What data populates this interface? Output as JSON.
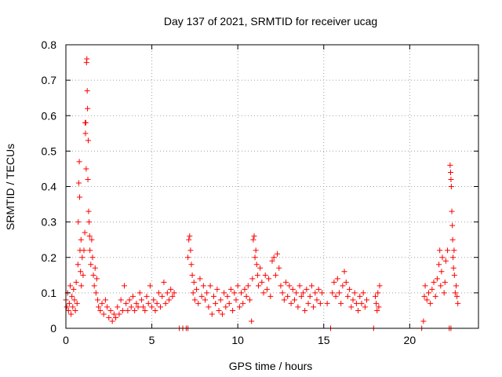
{
  "chart_data": {
    "type": "scatter",
    "title": "Day 137 of 2021, SRMTID for receiver ucag",
    "xlabel": "GPS time / hours",
    "ylabel": "SRMTID / TECUs",
    "xlim": [
      0,
      24
    ],
    "ylim": [
      0,
      0.8
    ],
    "xticks": [
      0,
      5,
      10,
      15,
      20
    ],
    "xtick_labels": [
      "0",
      "5",
      "10",
      "15",
      "20"
    ],
    "yticks": [
      0,
      0.1,
      0.2,
      0.3,
      0.4,
      0.5,
      0.6,
      0.7,
      0.8
    ],
    "ytick_labels": [
      "0",
      "0.1",
      "0.2",
      "0.3",
      "0.4",
      "0.5",
      "0.6",
      "0.7",
      "0.8"
    ],
    "grid": true,
    "marker": "+",
    "color": "#ff0000",
    "series": [
      {
        "name": "SRMTID",
        "points": [
          [
            0.0,
            0.08
          ],
          [
            0.05,
            0.06
          ],
          [
            0.1,
            0.1
          ],
          [
            0.15,
            0.05
          ],
          [
            0.2,
            0.07
          ],
          [
            0.25,
            0.12
          ],
          [
            0.3,
            0.04
          ],
          [
            0.35,
            0.09
          ],
          [
            0.4,
            0.06
          ],
          [
            0.45,
            0.11
          ],
          [
            0.5,
            0.08
          ],
          [
            0.55,
            0.05
          ],
          [
            0.6,
            0.13
          ],
          [
            0.65,
            0.07
          ],
          [
            0.7,
            0.18
          ],
          [
            0.72,
            0.3
          ],
          [
            0.75,
            0.41
          ],
          [
            0.78,
            0.47
          ],
          [
            0.8,
            0.37
          ],
          [
            0.82,
            0.22
          ],
          [
            0.85,
            0.16
          ],
          [
            0.88,
            0.25
          ],
          [
            0.9,
            0.12
          ],
          [
            0.95,
            0.2
          ],
          [
            1.0,
            0.15
          ],
          [
            1.05,
            0.22
          ],
          [
            1.1,
            0.27
          ],
          [
            1.12,
            0.58
          ],
          [
            1.14,
            0.55
          ],
          [
            1.16,
            0.58
          ],
          [
            1.18,
            0.45
          ],
          [
            1.2,
            0.75
          ],
          [
            1.22,
            0.76
          ],
          [
            1.24,
            0.67
          ],
          [
            1.26,
            0.62
          ],
          [
            1.28,
            0.42
          ],
          [
            1.3,
            0.53
          ],
          [
            1.32,
            0.33
          ],
          [
            1.35,
            0.3
          ],
          [
            1.38,
            0.26
          ],
          [
            1.4,
            0.22
          ],
          [
            1.45,
            0.18
          ],
          [
            1.5,
            0.25
          ],
          [
            1.55,
            0.2
          ],
          [
            1.6,
            0.15
          ],
          [
            1.65,
            0.12
          ],
          [
            1.7,
            0.17
          ],
          [
            1.75,
            0.1
          ],
          [
            1.8,
            0.14
          ],
          [
            1.85,
            0.08
          ],
          [
            1.9,
            0.06
          ],
          [
            2.0,
            0.05
          ],
          [
            2.1,
            0.07
          ],
          [
            2.2,
            0.04
          ],
          [
            2.3,
            0.08
          ],
          [
            2.4,
            0.06
          ],
          [
            2.5,
            0.03
          ],
          [
            2.6,
            0.05
          ],
          [
            2.7,
            0.02
          ],
          [
            2.8,
            0.04
          ],
          [
            2.9,
            0.03
          ],
          [
            3.0,
            0.06
          ],
          [
            3.1,
            0.04
          ],
          [
            3.2,
            0.08
          ],
          [
            3.3,
            0.05
          ],
          [
            3.4,
            0.12
          ],
          [
            3.5,
            0.07
          ],
          [
            3.6,
            0.05
          ],
          [
            3.7,
            0.08
          ],
          [
            3.8,
            0.06
          ],
          [
            3.9,
            0.09
          ],
          [
            4.0,
            0.05
          ],
          [
            4.1,
            0.07
          ],
          [
            4.2,
            0.06
          ],
          [
            4.3,
            0.1
          ],
          [
            4.4,
            0.08
          ],
          [
            4.5,
            0.06
          ],
          [
            4.6,
            0.05
          ],
          [
            4.7,
            0.09
          ],
          [
            4.8,
            0.07
          ],
          [
            4.9,
            0.12
          ],
          [
            5.0,
            0.06
          ],
          [
            5.1,
            0.08
          ],
          [
            5.2,
            0.05
          ],
          [
            5.3,
            0.07
          ],
          [
            5.4,
            0.1
          ],
          [
            5.5,
            0.06
          ],
          [
            5.6,
            0.09
          ],
          [
            5.7,
            0.13
          ],
          [
            5.8,
            0.07
          ],
          [
            5.9,
            0.1
          ],
          [
            6.0,
            0.08
          ],
          [
            6.1,
            0.11
          ],
          [
            6.2,
            0.09
          ],
          [
            6.3,
            0.1
          ],
          [
            6.6,
            0.0
          ],
          [
            6.8,
            0.0
          ],
          [
            7.0,
            0.0
          ],
          [
            7.1,
            0.0
          ],
          [
            7.1,
            0.2
          ],
          [
            7.15,
            0.25
          ],
          [
            7.2,
            0.26
          ],
          [
            7.25,
            0.22
          ],
          [
            7.3,
            0.18
          ],
          [
            7.35,
            0.15
          ],
          [
            7.4,
            0.1
          ],
          [
            7.45,
            0.13
          ],
          [
            7.5,
            0.08
          ],
          [
            7.6,
            0.11
          ],
          [
            7.7,
            0.07
          ],
          [
            7.8,
            0.14
          ],
          [
            7.9,
            0.09
          ],
          [
            8.0,
            0.12
          ],
          [
            8.1,
            0.08
          ],
          [
            8.2,
            0.1
          ],
          [
            8.3,
            0.06
          ],
          [
            8.4,
            0.12
          ],
          [
            8.5,
            0.04
          ],
          [
            8.6,
            0.09
          ],
          [
            8.7,
            0.07
          ],
          [
            8.8,
            0.11
          ],
          [
            8.9,
            0.05
          ],
          [
            9.0,
            0.08
          ],
          [
            9.1,
            0.04
          ],
          [
            9.2,
            0.1
          ],
          [
            9.3,
            0.06
          ],
          [
            9.4,
            0.09
          ],
          [
            9.5,
            0.07
          ],
          [
            9.6,
            0.11
          ],
          [
            9.7,
            0.05
          ],
          [
            9.8,
            0.1
          ],
          [
            9.9,
            0.08
          ],
          [
            10.0,
            0.12
          ],
          [
            10.1,
            0.06
          ],
          [
            10.2,
            0.1
          ],
          [
            10.3,
            0.07
          ],
          [
            10.4,
            0.11
          ],
          [
            10.5,
            0.09
          ],
          [
            10.6,
            0.12
          ],
          [
            10.7,
            0.08
          ],
          [
            10.8,
            0.02
          ],
          [
            10.85,
            0.14
          ],
          [
            10.9,
            0.25
          ],
          [
            10.95,
            0.26
          ],
          [
            11.0,
            0.2
          ],
          [
            11.05,
            0.22
          ],
          [
            11.1,
            0.18
          ],
          [
            11.15,
            0.15
          ],
          [
            11.2,
            0.12
          ],
          [
            11.3,
            0.17
          ],
          [
            11.4,
            0.13
          ],
          [
            11.5,
            0.1
          ],
          [
            11.6,
            0.15
          ],
          [
            11.7,
            0.11
          ],
          [
            11.8,
            0.14
          ],
          [
            11.9,
            0.09
          ],
          [
            12.0,
            0.19
          ],
          [
            12.1,
            0.2
          ],
          [
            12.2,
            0.15
          ],
          [
            12.3,
            0.21
          ],
          [
            12.4,
            0.17
          ],
          [
            12.5,
            0.12
          ],
          [
            12.6,
            0.1
          ],
          [
            12.7,
            0.08
          ],
          [
            12.8,
            0.13
          ],
          [
            12.9,
            0.09
          ],
          [
            13.0,
            0.12
          ],
          [
            13.1,
            0.07
          ],
          [
            13.2,
            0.11
          ],
          [
            13.3,
            0.08
          ],
          [
            13.4,
            0.1
          ],
          [
            13.5,
            0.06
          ],
          [
            13.6,
            0.12
          ],
          [
            13.7,
            0.09
          ],
          [
            13.8,
            0.1
          ],
          [
            13.9,
            0.05
          ],
          [
            14.0,
            0.11
          ],
          [
            14.1,
            0.07
          ],
          [
            14.2,
            0.09
          ],
          [
            14.3,
            0.12
          ],
          [
            14.4,
            0.06
          ],
          [
            14.5,
            0.1
          ],
          [
            14.6,
            0.08
          ],
          [
            14.7,
            0.11
          ],
          [
            14.8,
            0.07
          ],
          [
            14.9,
            0.1
          ],
          [
            15.2,
            0.07
          ],
          [
            15.4,
            0.0
          ],
          [
            15.5,
            0.1
          ],
          [
            15.6,
            0.13
          ],
          [
            15.7,
            0.09
          ],
          [
            15.8,
            0.14
          ],
          [
            15.9,
            0.1
          ],
          [
            16.0,
            0.07
          ],
          [
            16.1,
            0.12
          ],
          [
            16.2,
            0.16
          ],
          [
            16.3,
            0.13
          ],
          [
            16.4,
            0.09
          ],
          [
            16.5,
            0.11
          ],
          [
            16.6,
            0.06
          ],
          [
            16.7,
            0.08
          ],
          [
            16.8,
            0.1
          ],
          [
            16.9,
            0.07
          ],
          [
            17.0,
            0.05
          ],
          [
            17.1,
            0.09
          ],
          [
            17.2,
            0.07
          ],
          [
            17.3,
            0.1
          ],
          [
            17.4,
            0.06
          ],
          [
            17.5,
            0.08
          ],
          [
            17.9,
            0.0
          ],
          [
            18.0,
            0.09
          ],
          [
            18.05,
            0.07
          ],
          [
            18.1,
            0.05
          ],
          [
            18.15,
            0.1
          ],
          [
            18.2,
            0.06
          ],
          [
            18.25,
            0.12
          ],
          [
            20.7,
            0.0
          ],
          [
            20.8,
            0.02
          ],
          [
            20.85,
            0.09
          ],
          [
            20.9,
            0.12
          ],
          [
            21.0,
            0.08
          ],
          [
            21.1,
            0.1
          ],
          [
            21.2,
            0.07
          ],
          [
            21.3,
            0.11
          ],
          [
            21.4,
            0.13
          ],
          [
            21.5,
            0.09
          ],
          [
            21.6,
            0.14
          ],
          [
            21.7,
            0.18
          ],
          [
            21.75,
            0.22
          ],
          [
            21.8,
            0.12
          ],
          [
            21.85,
            0.16
          ],
          [
            21.9,
            0.2
          ],
          [
            22.0,
            0.1
          ],
          [
            22.05,
            0.13
          ],
          [
            22.1,
            0.19
          ],
          [
            22.2,
            0.22
          ],
          [
            22.3,
            0.0
          ],
          [
            22.4,
            0.0
          ],
          [
            22.35,
            0.46
          ],
          [
            22.38,
            0.44
          ],
          [
            22.4,
            0.42
          ],
          [
            22.42,
            0.4
          ],
          [
            22.45,
            0.33
          ],
          [
            22.48,
            0.29
          ],
          [
            22.5,
            0.25
          ],
          [
            22.52,
            0.2
          ],
          [
            22.55,
            0.17
          ],
          [
            22.58,
            0.22
          ],
          [
            22.6,
            0.15
          ],
          [
            22.65,
            0.1
          ],
          [
            22.7,
            0.12
          ],
          [
            22.75,
            0.09
          ],
          [
            22.8,
            0.07
          ]
        ]
      }
    ]
  }
}
